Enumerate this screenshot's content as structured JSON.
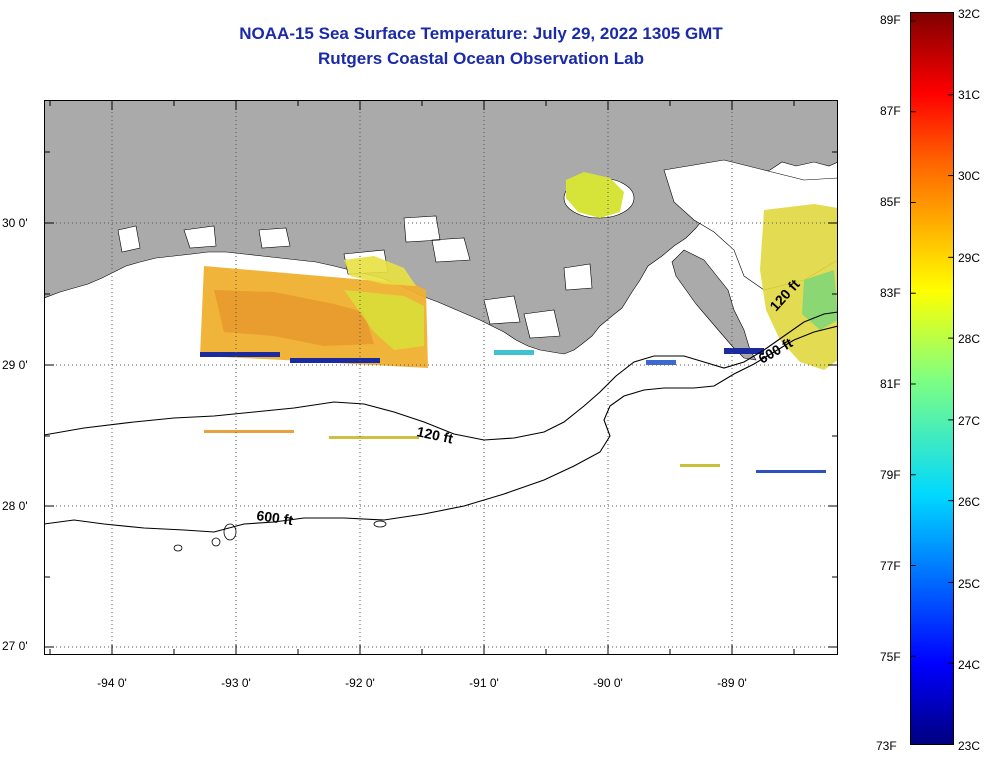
{
  "header": {
    "title_line1": "NOAA-15 Sea Surface Temperature:  July 29, 2022 1305 GMT",
    "title_line2": "Rutgers Coastal Ocean Observation Lab"
  },
  "axes": {
    "lat_labels": [
      "30 0'",
      "29 0'",
      "28 0'",
      "27 0'"
    ],
    "lon_labels": [
      "-94 0'",
      "-93 0'",
      "-92 0'",
      "-91 0'",
      "-90 0'",
      "-89 0'"
    ]
  },
  "contours": {
    "label_120_west": "120 ft",
    "label_600_west": "600 ft",
    "label_120_east": "120 ft",
    "label_600_east": "600 ft"
  },
  "colorbar": {
    "fahrenheit": [
      "89F",
      "87F",
      "85F",
      "83F",
      "81F",
      "79F",
      "77F",
      "75F",
      "73F"
    ],
    "celsius": [
      "32C",
      "31C",
      "30C",
      "29C",
      "28C",
      "27C",
      "26C",
      "25C",
      "24C",
      "23C"
    ],
    "range_c": [
      23,
      32
    ]
  },
  "colors": {
    "title": "#1a2aa8",
    "land": "#aaaaaa",
    "ocean": "#ffffff"
  }
}
